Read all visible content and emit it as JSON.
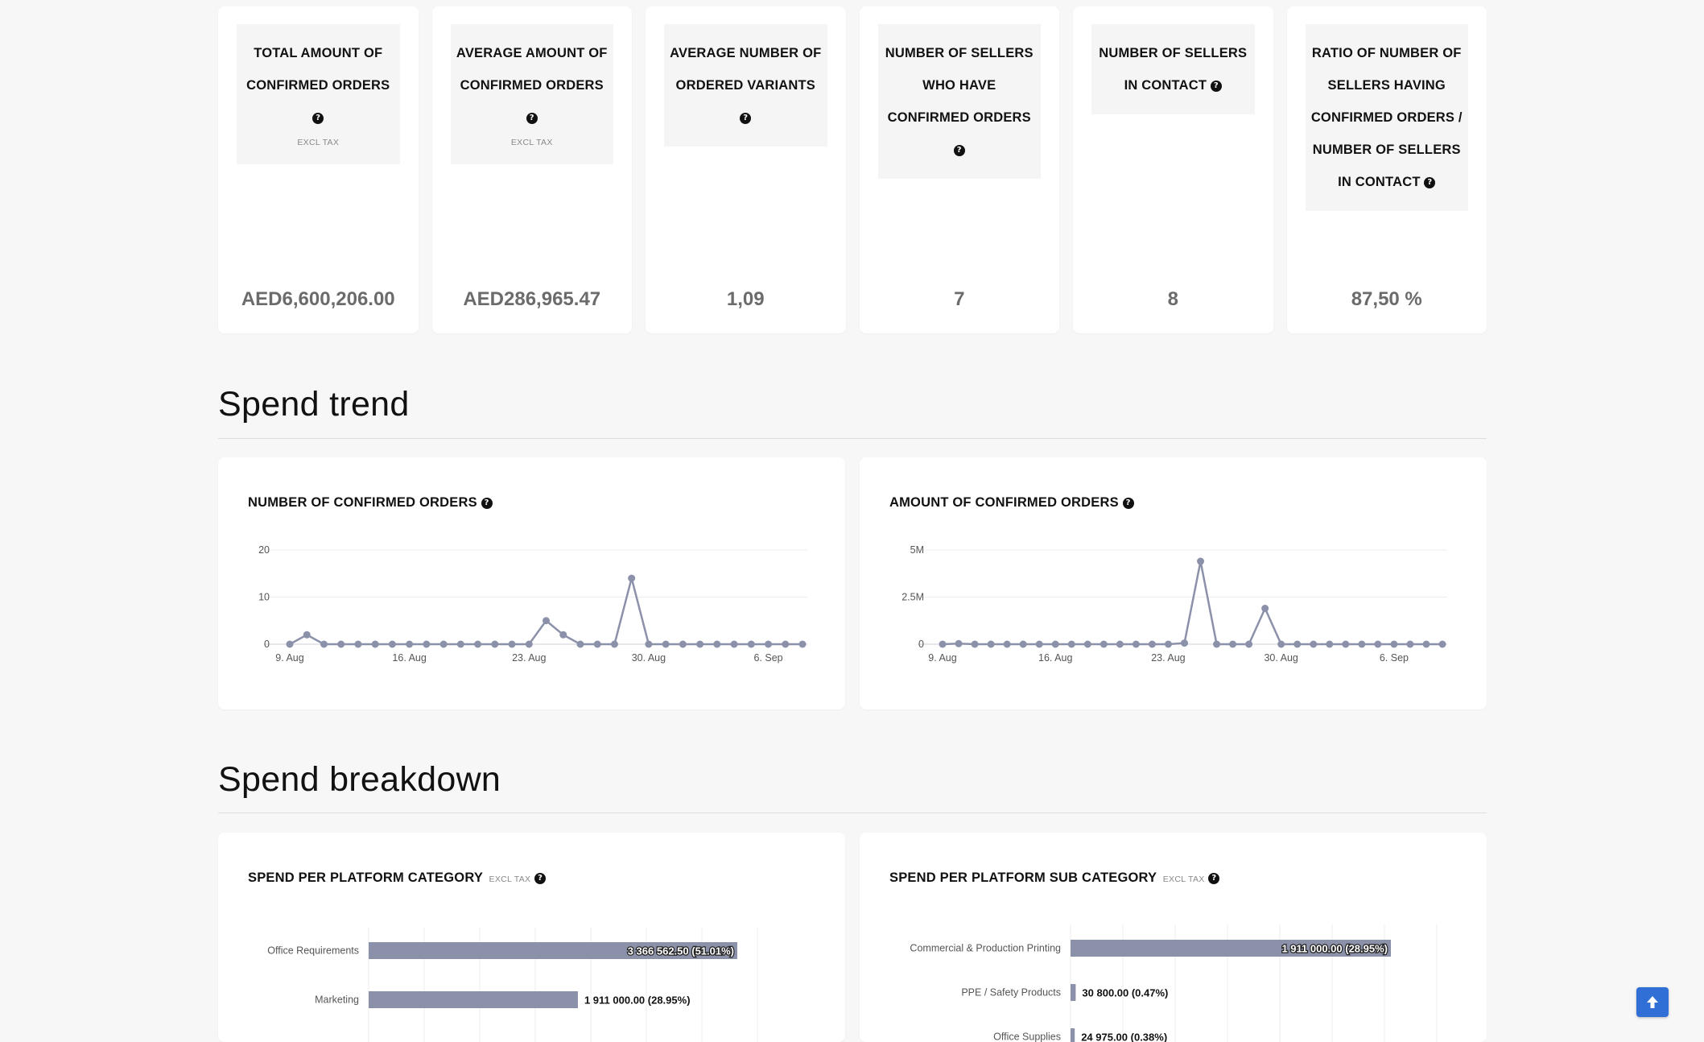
{
  "kpis": [
    {
      "lines": [
        "TOTAL AMOUNT OF",
        "CONFIRMED ORDERS"
      ],
      "help_icon": "question-circle-icon",
      "help_newline": true,
      "note": "EXCL TAX",
      "value": "AED6,600,206.00"
    },
    {
      "lines": [
        "AVERAGE AMOUNT OF",
        "CONFIRMED ORDERS"
      ],
      "help_icon": "question-circle-icon",
      "help_newline": true,
      "note": "EXCL TAX",
      "value": "AED286,965.47"
    },
    {
      "lines": [
        "AVERAGE NUMBER OF",
        "ORDERED VARIANTS"
      ],
      "help_icon": "question-circle-icon",
      "help_newline": true,
      "note": "",
      "value": "1,09"
    },
    {
      "lines": [
        "NUMBER OF SELLERS",
        "WHO HAVE",
        "CONFIRMED ORDERS"
      ],
      "help_icon": "question-circle-icon",
      "help_newline": true,
      "note": "",
      "value": "7"
    },
    {
      "lines": [
        "NUMBER OF SELLERS",
        "IN CONTACT"
      ],
      "help_icon": "question-circle-icon",
      "help_newline": false,
      "note": "",
      "value": "8"
    },
    {
      "lines": [
        "RATIO OF NUMBER OF",
        "SELLERS HAVING",
        "CONFIRMED ORDERS /",
        "NUMBER OF SELLERS",
        "IN CONTACT"
      ],
      "help_icon": "question-circle-icon",
      "help_newline": false,
      "note": "",
      "value": "87,50 %"
    }
  ],
  "sections": {
    "spend_trend": "Spend trend",
    "spend_breakdown": "Spend breakdown"
  },
  "charts": {
    "orders_count": {
      "title": "NUMBER OF CONFIRMED ORDERS",
      "help_icon": "question-circle-icon"
    },
    "orders_amount": {
      "title": "AMOUNT OF CONFIRMED ORDERS",
      "help_icon": "question-circle-icon"
    },
    "platform_category": {
      "title": "SPEND PER PLATFORM CATEGORY",
      "note": "EXCL TAX",
      "help_icon": "question-circle-icon"
    },
    "platform_sub_category": {
      "title": "SPEND PER PLATFORM SUB CATEGORY",
      "note": "EXCL TAX",
      "help_icon": "question-circle-icon"
    }
  },
  "chart_data": [
    {
      "type": "line",
      "title": "NUMBER OF CONFIRMED ORDERS",
      "x_tick_labels": [
        "9. Aug",
        "16. Aug",
        "23. Aug",
        "30. Aug",
        "6. Sep"
      ],
      "x_ticks": [
        0,
        7,
        14,
        21,
        28
      ],
      "x_start": "9. Aug",
      "y_ticks": [
        "0",
        "10",
        "20"
      ],
      "ylim": [
        0,
        20
      ],
      "grid": true,
      "series": [
        {
          "values": [
            0,
            2,
            0,
            0,
            0,
            0,
            0,
            0,
            0,
            0,
            0,
            0,
            0,
            0,
            0,
            5,
            2,
            0,
            0,
            0,
            14,
            0,
            0,
            0,
            0,
            0,
            0,
            0,
            0,
            0,
            0
          ]
        }
      ],
      "color": "#8c91aa"
    },
    {
      "type": "line",
      "title": "AMOUNT OF CONFIRMED ORDERS",
      "x_tick_labels": [
        "9. Aug",
        "16. Aug",
        "23. Aug",
        "30. Aug",
        "6. Sep"
      ],
      "x_ticks": [
        0,
        7,
        14,
        21,
        28
      ],
      "x_start": "9. Aug",
      "y_ticks": [
        "0",
        "2.5M",
        "5M"
      ],
      "ylim": [
        0,
        5000000
      ],
      "grid": true,
      "series": [
        {
          "values": [
            0,
            30000,
            0,
            0,
            0,
            0,
            0,
            0,
            0,
            0,
            0,
            0,
            0,
            0,
            0,
            60000,
            4400000,
            0,
            0,
            0,
            1900000,
            0,
            0,
            0,
            0,
            0,
            0,
            0,
            0,
            0,
            0,
            0
          ]
        }
      ],
      "color": "#8c91aa"
    },
    {
      "type": "bar",
      "orientation": "horizontal",
      "title": "SPEND PER PLATFORM CATEGORY",
      "categories": [
        "Office Requirements",
        "Marketing"
      ],
      "values": [
        3366562.5,
        1911000.0
      ],
      "labels": [
        "3 366 562.50 (51.01%)",
        "1 911 000.00 (28.95%)"
      ],
      "color": "#8c91aa"
    },
    {
      "type": "bar",
      "orientation": "horizontal",
      "title": "SPEND PER PLATFORM SUB CATEGORY",
      "categories": [
        "Commercial & Production Printing",
        "PPE / Safety Products",
        "Office Supplies"
      ],
      "values": [
        1911000.0,
        30800.0,
        24975.0
      ],
      "labels": [
        "1 911 000.00 (28.95%)",
        "30 800.00 (0.47%)",
        "24 975.00 (0.38%)"
      ],
      "color": "#8c91aa"
    }
  ],
  "scroll_top": {
    "icon": "arrow-up-icon"
  }
}
